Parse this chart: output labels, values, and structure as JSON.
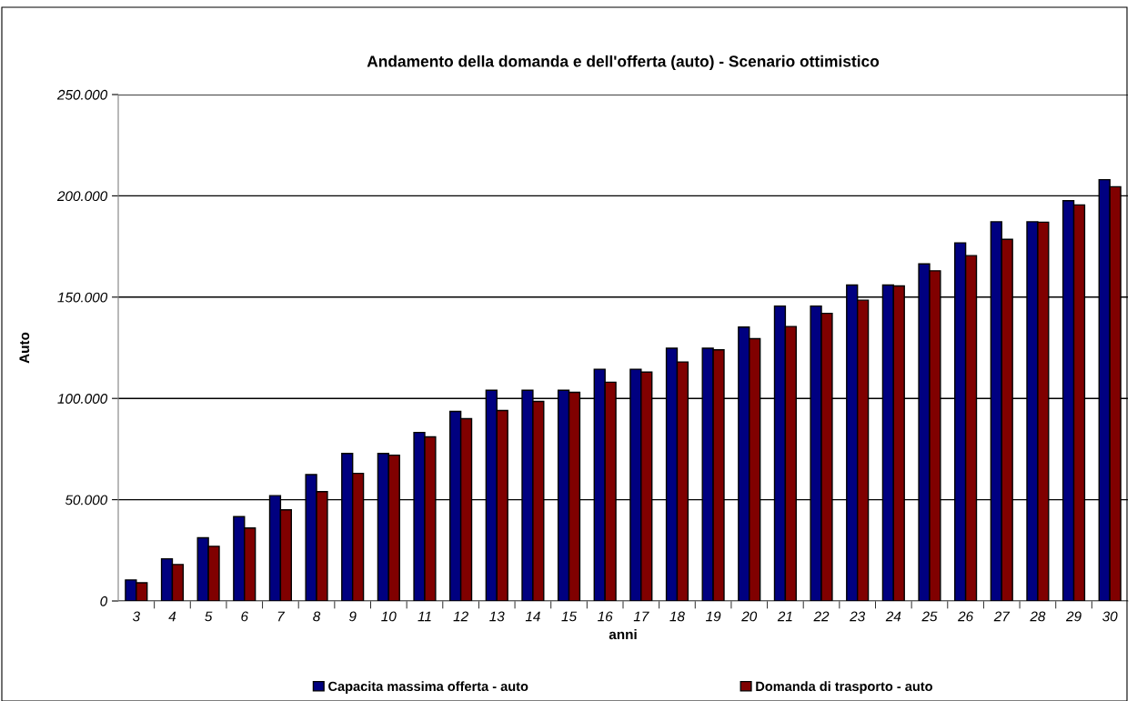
{
  "chart_data": {
    "type": "bar",
    "title": "Andamento della domanda e dell'offerta (auto) - Scenario ottimistico",
    "xlabel": "anni",
    "ylabel": "Auto",
    "categories": [
      "3",
      "4",
      "5",
      "6",
      "7",
      "8",
      "9",
      "10",
      "11",
      "12",
      "13",
      "14",
      "15",
      "16",
      "17",
      "18",
      "19",
      "20",
      "21",
      "22",
      "23",
      "24",
      "25",
      "26",
      "27",
      "28",
      "29",
      "30"
    ],
    "series": [
      {
        "name": "Capacita massima offerta - auto",
        "color": "#000080",
        "values": [
          10400,
          20800,
          31200,
          41600,
          52000,
          62400,
          72800,
          72800,
          83200,
          93600,
          104000,
          104000,
          104000,
          114400,
          114400,
          124800,
          124800,
          135200,
          145600,
          145600,
          156000,
          156000,
          166400,
          176800,
          187200,
          187200,
          197600,
          208000
        ]
      },
      {
        "name": "Domanda di trasporto - auto",
        "color": "#800000",
        "values": [
          9000,
          18000,
          27000,
          36000,
          45000,
          54000,
          63000,
          72000,
          81000,
          90000,
          94000,
          98500,
          103000,
          108000,
          113000,
          118000,
          124000,
          129500,
          135500,
          142000,
          148500,
          155500,
          163000,
          170500,
          178500,
          187000,
          195500,
          204500
        ]
      }
    ],
    "ylim": [
      0,
      250000
    ],
    "yticks": [
      {
        "value": 0,
        "label": "0"
      },
      {
        "value": 50000,
        "label": "50.000"
      },
      {
        "value": 100000,
        "label": "100.000"
      },
      {
        "value": 150000,
        "label": "150.000"
      },
      {
        "value": 200000,
        "label": "200.000"
      },
      {
        "value": 250000,
        "label": "250.000"
      }
    ],
    "grid": "y",
    "legend": "bottom"
  }
}
